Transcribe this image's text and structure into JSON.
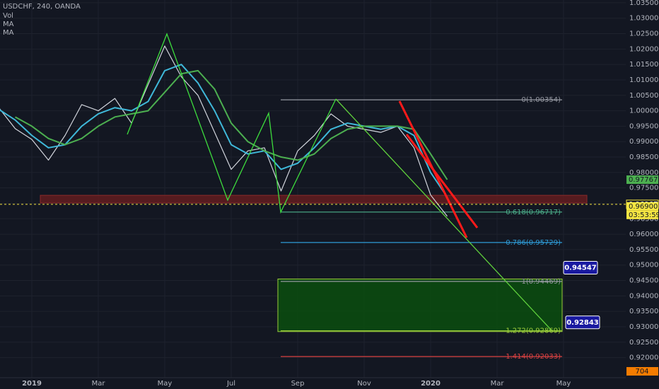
{
  "header": {
    "symbol": "USDCHF, 240, OANDA",
    "indicators": [
      "Vol",
      "MA",
      "MA"
    ]
  },
  "chart_data": {
    "type": "line",
    "categories": [
      null,
      null,
      "2019",
      null,
      null,
      null,
      "Mar",
      null,
      null,
      null,
      "May",
      null,
      null,
      null,
      "Jul",
      null,
      null,
      null,
      "Sep",
      null,
      null,
      null,
      "Nov",
      null,
      null,
      null,
      "2020",
      null,
      null,
      null,
      "Mar",
      null,
      null,
      null,
      "May"
    ],
    "series": [
      {
        "color": "#d1d4dc",
        "values": [
          1.0011,
          0.9942,
          0.9907,
          0.984,
          0.992,
          1.002,
          1.0,
          1.004,
          0.996,
          1.0085,
          1.021,
          1.011,
          1.005,
          0.993,
          0.981,
          0.987,
          0.988,
          0.974,
          0.987,
          0.992,
          0.999,
          0.995,
          0.994,
          0.993,
          0.995,
          0.988,
          0.9727,
          0.9658,
          null,
          null,
          null,
          null,
          null,
          null,
          null
        ]
      },
      {
        "color": "#3fb8d9",
        "values": [
          1.0005,
          0.997,
          0.992,
          0.988,
          0.989,
          0.995,
          0.999,
          1.001,
          1.0,
          1.003,
          1.013,
          1.015,
          1.009,
          1.0,
          0.989,
          0.986,
          0.987,
          0.981,
          0.983,
          0.988,
          0.994,
          0.996,
          0.995,
          0.994,
          0.995,
          0.992,
          0.98,
          0.972,
          null,
          null,
          null,
          null,
          null,
          null,
          null
        ]
      },
      {
        "color": "#4caf50",
        "values": [
          null,
          0.998,
          0.995,
          0.991,
          0.989,
          0.991,
          0.995,
          0.998,
          0.999,
          1.0,
          1.006,
          1.012,
          1.013,
          1.007,
          0.996,
          0.99,
          0.987,
          0.985,
          0.984,
          0.986,
          0.991,
          0.994,
          0.995,
          0.995,
          0.995,
          0.994,
          0.986,
          0.97767,
          null,
          null,
          null,
          null,
          null,
          null,
          null
        ]
      }
    ],
    "ylim": [
      0.9144,
      1.0359
    ],
    "yticks": [
      {
        "value": 1.035,
        "label": "1.03500"
      },
      {
        "value": 1.03,
        "label": "1.03000"
      },
      {
        "value": 1.025,
        "label": "1.02500"
      },
      {
        "value": 1.02,
        "label": "1.02000"
      },
      {
        "value": 1.015,
        "label": "1.01500"
      },
      {
        "value": 1.01,
        "label": "1.01000"
      },
      {
        "value": 1.005,
        "label": "1.00500"
      },
      {
        "value": 1.0,
        "label": "1.00000"
      },
      {
        "value": 0.995,
        "label": "0.99500"
      },
      {
        "value": 0.99,
        "label": "0.99000"
      },
      {
        "value": 0.985,
        "label": "0.98500"
      },
      {
        "value": 0.98,
        "label": "0.98000"
      },
      {
        "value": 0.975,
        "label": "0.97500"
      },
      {
        "value": 0.97,
        "label": "0.97000"
      },
      {
        "value": 0.965,
        "label": "0.96500"
      },
      {
        "value": 0.96,
        "label": "0.96000"
      },
      {
        "value": 0.955,
        "label": "0.95500"
      },
      {
        "value": 0.95,
        "label": "0.95000"
      },
      {
        "value": 0.945,
        "label": "0.94500"
      },
      {
        "value": 0.94,
        "label": "0.94000"
      },
      {
        "value": 0.935,
        "label": "0.93500"
      },
      {
        "value": 0.93,
        "label": "0.93000"
      },
      {
        "value": 0.925,
        "label": "0.92500"
      },
      {
        "value": 0.92,
        "label": "0.92000"
      }
    ],
    "grid": true,
    "levels": [
      {
        "label": "0(1.00354)",
        "value": 1.00354,
        "color": "#9598a1"
      },
      {
        "label": "0.618(0.96717)",
        "value": 0.96717,
        "color": "#4caf8a"
      },
      {
        "label": "0.786(0.95729)",
        "value": 0.95729,
        "color": "#2e9bd6"
      },
      {
        "label": "1(0.94469)",
        "value": 0.94469,
        "color": "#9598a1"
      },
      {
        "label": "1.272(0.92869)",
        "value": 0.92869,
        "color": "#9ccc3c"
      },
      {
        "label": "1.414(0.92033)",
        "value": 0.92033,
        "color": "#d84040"
      }
    ],
    "zones": [
      {
        "low": 0.9701,
        "high": 0.9726,
        "color": "#5e1c1f"
      },
      {
        "low": 0.92843,
        "high": 0.94547,
        "color": "#0b4a10"
      }
    ],
    "price_tags": [
      {
        "value": 0.97767,
        "label": "0.97767",
        "color": "#4caf50",
        "text_color": "#131722"
      },
      {
        "value": 0.96967,
        "label": "0.96967",
        "color": "#131722",
        "text_color": "#ffffff"
      },
      {
        "value": 0.969,
        "label": "0.96900",
        "color": "#f5e642",
        "text_color": "#131722"
      }
    ],
    "countdown": "03:53:59",
    "volume_tag": "704"
  }
}
